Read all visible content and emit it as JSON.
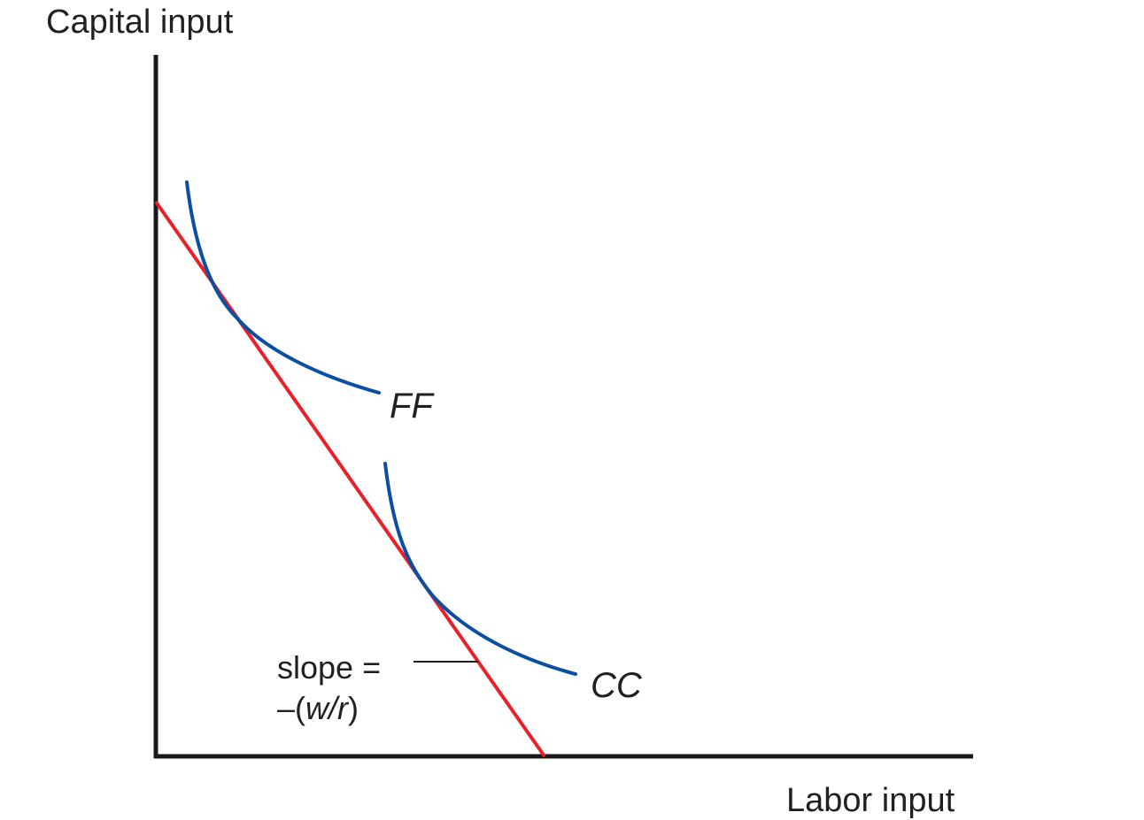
{
  "axes": {
    "y_label": "Capital input",
    "x_label": "Labor input"
  },
  "curves": {
    "ff": {
      "label": "FF"
    },
    "cc": {
      "label": "CC"
    }
  },
  "slope_note": {
    "line1": "slope =",
    "line2_prefix": "–(",
    "line2_italic": "w/r",
    "line2_suffix": ")"
  },
  "colors": {
    "isoquant": "#0b4ea2",
    "isocost": "#e8202a",
    "axis": "#1a1a1a"
  }
}
